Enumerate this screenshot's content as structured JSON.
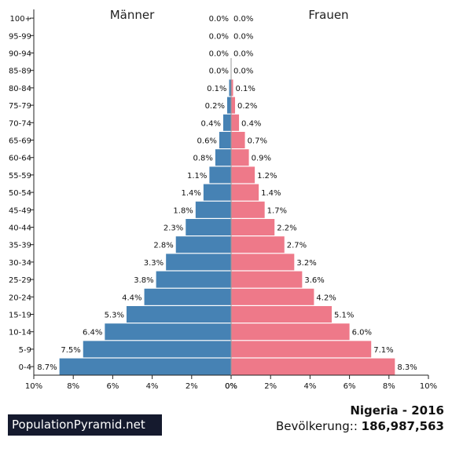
{
  "chart_data": {
    "type": "bar",
    "orientation": "horizontal",
    "categories": [
      "100+",
      "95-99",
      "90-94",
      "85-89",
      "80-84",
      "75-79",
      "70-74",
      "65-69",
      "60-64",
      "55-59",
      "50-54",
      "45-49",
      "40-44",
      "35-39",
      "30-34",
      "25-29",
      "20-24",
      "15-19",
      "10-14",
      "5-9",
      "0-4"
    ],
    "series": [
      {
        "name": "Männer",
        "color": "#4682b4",
        "values": [
          0.0,
          0.0,
          0.0,
          0.0,
          0.1,
          0.2,
          0.4,
          0.6,
          0.8,
          1.1,
          1.4,
          1.8,
          2.3,
          2.8,
          3.3,
          3.8,
          4.4,
          5.3,
          6.4,
          7.5,
          8.7
        ],
        "labels": [
          "0.0%",
          "0.0%",
          "0.0%",
          "0.0%",
          "0.1%",
          "0.2%",
          "0.4%",
          "0.6%",
          "0.8%",
          "1.1%",
          "1.4%",
          "1.8%",
          "2.3%",
          "2.8%",
          "3.3%",
          "3.8%",
          "4.4%",
          "5.3%",
          "6.4%",
          "7.5%",
          "8.7%"
        ]
      },
      {
        "name": "Frauen",
        "color": "#ee7989",
        "values": [
          0.0,
          0.0,
          0.0,
          0.0,
          0.1,
          0.2,
          0.4,
          0.7,
          0.9,
          1.2,
          1.4,
          1.7,
          2.2,
          2.7,
          3.2,
          3.6,
          4.2,
          5.1,
          6.0,
          7.1,
          8.3
        ],
        "labels": [
          "0.0%",
          "0.0%",
          "0.0%",
          "0.0%",
          "0.1%",
          "0.2%",
          "0.4%",
          "0.7%",
          "0.9%",
          "1.2%",
          "1.4%",
          "1.7%",
          "2.2%",
          "2.7%",
          "3.2%",
          "3.6%",
          "4.2%",
          "5.1%",
          "6.0%",
          "7.1%",
          "8.3%"
        ]
      }
    ],
    "xlim": [
      0,
      10
    ],
    "left_ticks": [
      "10%",
      "8%",
      "6%",
      "4%",
      "2%",
      "0%"
    ],
    "right_ticks": [
      "0%",
      "2%",
      "4%",
      "6%",
      "8%",
      "10%"
    ],
    "grid": false
  },
  "footer": {
    "brand": "PopulationPyramid.net",
    "title": "Nigeria - 2016",
    "population_label": "Bevölkerung:: ",
    "population_value": "186,987,563"
  }
}
